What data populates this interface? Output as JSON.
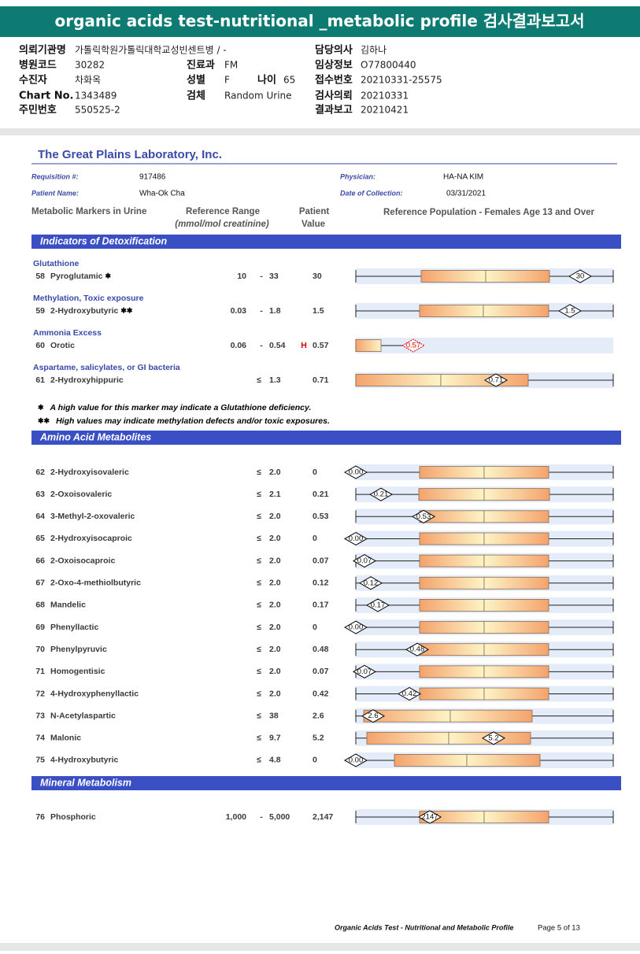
{
  "header": {
    "title": "organic acids test-nutritional _metabolic profile 검사결과보고서"
  },
  "info": [
    {
      "label": "의뢰기관명",
      "value": "가톨릭학원가톨릭대학교성빈센트병 / -"
    },
    {
      "label": "담당의사",
      "value": "김하나"
    },
    {
      "label": "병원코드",
      "value": "30282"
    },
    {
      "label": "진료과",
      "value": "FM"
    },
    {
      "label": "임상정보",
      "value": "O77800440"
    },
    {
      "label": "수진자",
      "value": "차화옥"
    },
    {
      "label": "성별",
      "value": "F"
    },
    {
      "label": "나이",
      "value": "65"
    },
    {
      "label": "접수번호",
      "value": "20210331-25575"
    },
    {
      "label": "Chart No.",
      "value": "1343489"
    },
    {
      "label": "검체",
      "value": "Random Urine"
    },
    {
      "label": "검사의뢰",
      "value": "20210331"
    },
    {
      "label": "주민번호",
      "value": "550525-2"
    },
    {
      "label": "결과보고",
      "value": "20210421"
    }
  ],
  "report": {
    "lab": "The Great Plains Laboratory, Inc.",
    "fields": [
      {
        "label": "Requisition #:",
        "value": "917486"
      },
      {
        "label": "Physician:",
        "value": "HA-NA KIM"
      },
      {
        "label": "Patient Name:",
        "value": "Wha-Ok Cha"
      },
      {
        "label": "Date of Collection:",
        "value": "03/31/2021"
      }
    ],
    "columns": [
      "Metabolic Markers in Urine",
      "Reference Range",
      "(mmol/mol creatinine)",
      "Patient",
      "Value",
      "Reference Population - Females Age 13 and Over"
    ],
    "sections": [
      {
        "title": "Indicators of Detoxification",
        "groups": [
          {
            "title": "Glutathione",
            "rows": [
              {
                "num": "58",
                "name": "Pyroglutamic",
                "mark": "✱",
                "low": "10",
                "sep": "-",
                "high": "33",
                "value": "30",
                "marker": "30"
              }
            ]
          },
          {
            "title": "Methylation, Toxic exposure",
            "rows": [
              {
                "num": "59",
                "name": "2-Hydroxybutyric",
                "mark": "✱✱",
                "low": "0.03",
                "sep": "-",
                "high": "1.8",
                "value": "1.5",
                "marker": "1.5"
              }
            ]
          },
          {
            "title": "Ammonia Excess",
            "rows": [
              {
                "num": "60",
                "name": "Orotic",
                "low": "0.06",
                "sep": "-",
                "high": "0.54",
                "flag": "H",
                "value": "0.57",
                "marker": "0.57"
              }
            ]
          },
          {
            "title": "Aspartame, salicylates, or GI bacteria",
            "rows": [
              {
                "num": "61",
                "name": "2-Hydroxyhippuric",
                "sep": "≤",
                "high": "1.3",
                "value": "0.71",
                "marker": "0.71"
              }
            ]
          }
        ]
      },
      {
        "title": "Amino Acid Metabolites",
        "groups": [
          {
            "rows": [
              {
                "num": "62",
                "name": "2-Hydroxyisovaleric",
                "sep": "≤",
                "high": "2.0",
                "value": "0",
                "marker": "0.00"
              },
              {
                "num": "63",
                "name": "2-Oxoisovaleric",
                "sep": "≤",
                "high": "2.1",
                "value": "0.21",
                "marker": "0.21"
              },
              {
                "num": "64",
                "name": "3-Methyl-2-oxovaleric",
                "sep": "≤",
                "high": "2.0",
                "value": "0.53",
                "marker": "0.53"
              },
              {
                "num": "65",
                "name": "2-Hydroxyisocaproic",
                "sep": "≤",
                "high": "2.0",
                "value": "0",
                "marker": "0.00"
              },
              {
                "num": "66",
                "name": "2-Oxoisocaproic",
                "sep": "≤",
                "high": "2.0",
                "value": "0.07",
                "marker": "0.07"
              },
              {
                "num": "67",
                "name": "2-Oxo-4-methiolbutyric",
                "sep": "≤",
                "high": "2.0",
                "value": "0.12",
                "marker": "0.12"
              },
              {
                "num": "68",
                "name": "Mandelic",
                "sep": "≤",
                "high": "2.0",
                "value": "0.17",
                "marker": "0.17"
              },
              {
                "num": "69",
                "name": "Phenyllactic",
                "sep": "≤",
                "high": "2.0",
                "value": "0",
                "marker": "0.00"
              },
              {
                "num": "70",
                "name": "Phenylpyruvic",
                "sep": "≤",
                "high": "2.0",
                "value": "0.48",
                "marker": "0.48"
              },
              {
                "num": "71",
                "name": "Homogentisic",
                "sep": "≤",
                "high": "2.0",
                "value": "0.07",
                "marker": "0.07"
              },
              {
                "num": "72",
                "name": "4-Hydroxyphenyllactic",
                "sep": "≤",
                "high": "2.0",
                "value": "0.42",
                "marker": "0.42"
              },
              {
                "num": "73",
                "name": "N-Acetylaspartic",
                "sep": "≤",
                "high": "38",
                "value": "2.6",
                "marker": "2.6"
              },
              {
                "num": "74",
                "name": "Malonic",
                "sep": "≤",
                "high": "9.7",
                "value": "5.2",
                "marker": "5.2"
              },
              {
                "num": "75",
                "name": "4-Hydroxybutyric",
                "sep": "≤",
                "high": "4.8",
                "value": "0",
                "marker": "0.00"
              }
            ]
          }
        ]
      },
      {
        "title": "Mineral Metabolism",
        "groups": [
          {
            "rows": [
              {
                "num": "76",
                "name": "Phosphoric",
                "low": "1,000",
                "sep": "-",
                "high": "5,000",
                "value": "2,147",
                "marker": "2147"
              }
            ]
          }
        ]
      }
    ],
    "footnotes": [
      {
        "mark": "✱",
        "text": "A high value for this marker may indicate a Glutathione deficiency."
      },
      {
        "mark": "✱✱",
        "text": "High values may indicate methylation defects and/or toxic exposures."
      }
    ],
    "footer": {
      "title": "Organic Acids Test - Nutritional and Metabolic Profile",
      "page": "Page 5 of 13"
    }
  }
}
